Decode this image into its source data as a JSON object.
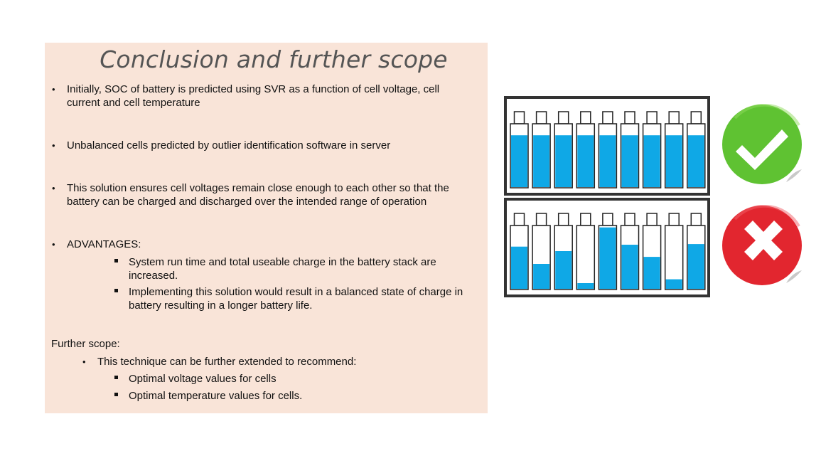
{
  "slide": {
    "title": "Conclusion and further scope",
    "bullets": [
      "Initially, SOC of battery is predicted using SVR as a function of cell voltage, cell current and cell temperature",
      "Unbalanced cells predicted by outlier identification software in server",
      "This solution ensures cell voltages remain close enough to each other so that the battery can be charged and discharged over the intended range of operation",
      "ADVANTAGES:"
    ],
    "advantages": [
      "System run time and total useable charge in the battery stack are increased.",
      "Implementing this solution would result in a balanced state of charge in battery resulting in a longer battery life."
    ],
    "further_scope_label": "Further scope:",
    "further_bullet": "This technique can be further extended to recommend:",
    "further_items": [
      "Optimal voltage values for cells",
      "Optimal temperature values for cells."
    ]
  },
  "illustration": {
    "balanced_levels": [
      0.82,
      0.82,
      0.82,
      0.82,
      0.82,
      0.82,
      0.82,
      0.82,
      0.82
    ],
    "unbalanced_levels": [
      0.67,
      0.4,
      0.6,
      0.1,
      0.97,
      0.7,
      0.51,
      0.16,
      0.71
    ],
    "fill_color": "#0fa8e6",
    "check_color": "#5fc232",
    "cross_color": "#e2262f",
    "icons": [
      "check-badge-icon",
      "cross-badge-icon"
    ]
  }
}
